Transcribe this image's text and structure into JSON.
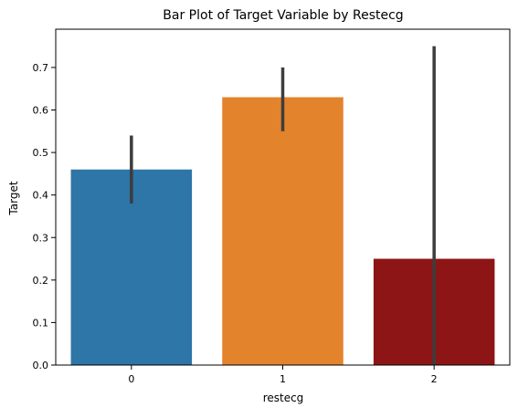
{
  "chart_data": {
    "type": "bar",
    "title": "Bar Plot of Target Variable by Restecg",
    "xlabel": "restecg",
    "ylabel": "Target",
    "categories": [
      "0",
      "1",
      "2"
    ],
    "values": [
      0.46,
      0.63,
      0.25
    ],
    "error_bars": [
      [
        0.38,
        0.54
      ],
      [
        0.55,
        0.7
      ],
      [
        0.0,
        0.75
      ]
    ],
    "colors": [
      "#2e75a8",
      "#e3832b",
      "#8e1515"
    ],
    "error_color": "#3d3d3d",
    "ylim": [
      0,
      0.79
    ],
    "yticks": [
      "0.0",
      "0.1",
      "0.2",
      "0.3",
      "0.4",
      "0.5",
      "0.6",
      "0.7"
    ],
    "grid": false,
    "legend": "none"
  }
}
